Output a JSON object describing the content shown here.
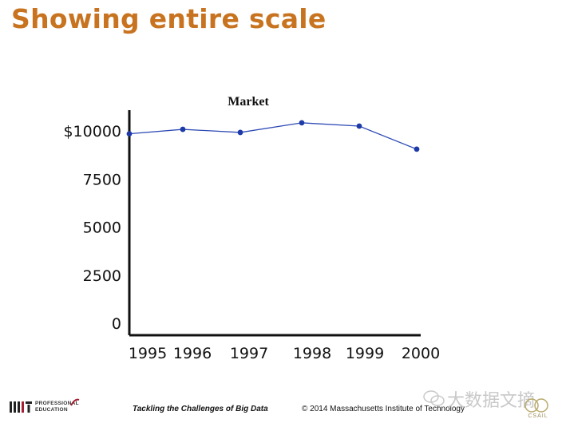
{
  "slide": {
    "title": "Showing entire scale"
  },
  "chart_data": {
    "type": "line",
    "title": "Market",
    "x": [
      "1995",
      "1996",
      "1997",
      "1998",
      "1999",
      "2000"
    ],
    "series": [
      {
        "values": [
          9850,
          10080,
          9920,
          10420,
          10250,
          9050
        ]
      }
    ],
    "y_ticks": [
      "$10000",
      "7500",
      "5000",
      "2500",
      "0"
    ],
    "y_tick_values": [
      10000,
      7500,
      5000,
      2500,
      0
    ],
    "ylim": [
      0,
      11000
    ],
    "grid": false,
    "line_color": "#2e4bb5",
    "marker_color": "#1d3aa8"
  },
  "footer": {
    "logo_text_line1": "PROFESSIONAL",
    "logo_text_line2": "EDUCATION",
    "course": "Tackling the Challenges of Big Data",
    "copyright": "© 2014 Massachusetts Institute of Technology",
    "watermark": "大数据文摘",
    "csail": "CSAIL"
  }
}
